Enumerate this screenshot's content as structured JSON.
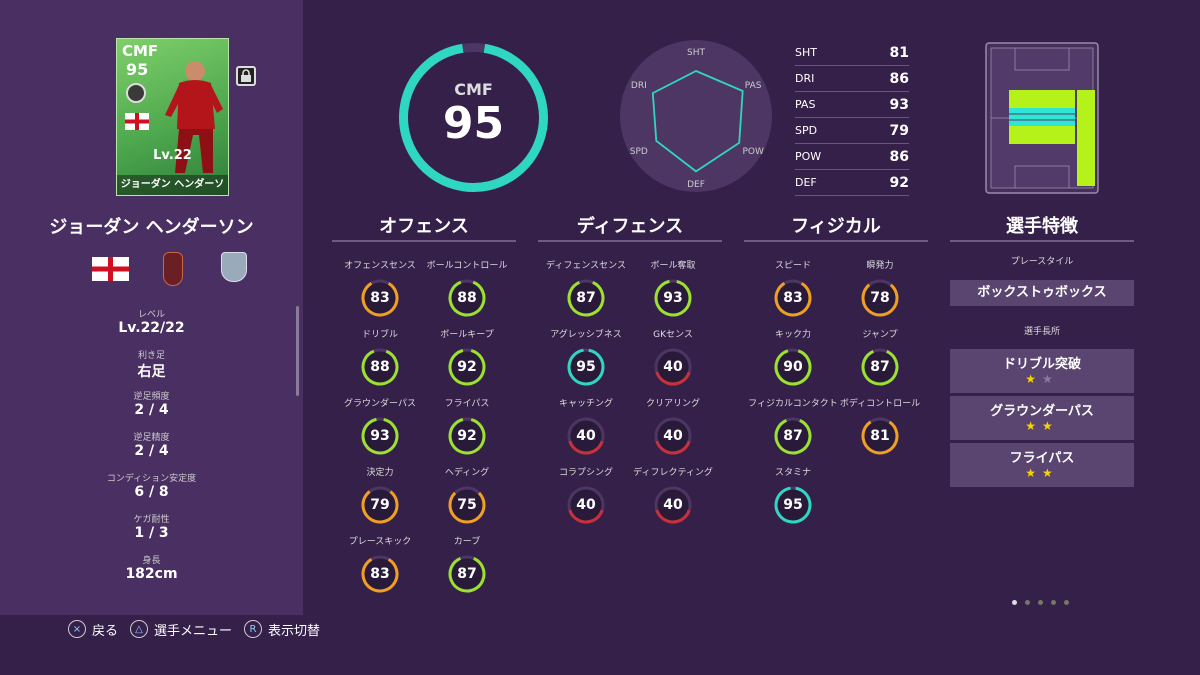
{
  "card": {
    "position": "CMF",
    "rating": "95",
    "level": "Lv.22",
    "name": "ジョーダン ヘンダーソン"
  },
  "player_name": "ジョーダン ヘンダーソン",
  "profile": [
    {
      "label": "レベル",
      "value": "Lv.22/22"
    },
    {
      "label": "利き足",
      "value": "右足"
    },
    {
      "label": "逆足頻度",
      "value": "2 / 4"
    },
    {
      "label": "逆足精度",
      "value": "2 / 4"
    },
    {
      "label": "コンディション安定度",
      "value": "6 / 8"
    },
    {
      "label": "ケガ耐性",
      "value": "1 / 3"
    },
    {
      "label": "身長",
      "value": "182cm"
    }
  ],
  "controls": [
    {
      "icon": "×",
      "label": "戻る"
    },
    {
      "icon": "△",
      "label": "選手メニュー"
    },
    {
      "icon": "R",
      "label": "表示切替"
    }
  ],
  "overall": {
    "position": "CMF",
    "rating": "95",
    "fraction": 0.95
  },
  "radar": {
    "labels": [
      "SHT",
      "PAS",
      "POW",
      "DEF",
      "SPD",
      "DRI"
    ],
    "values": [
      81,
      93,
      86,
      92,
      79,
      86
    ]
  },
  "stats": [
    {
      "k": "SHT",
      "v": "81"
    },
    {
      "k": "DRI",
      "v": "86"
    },
    {
      "k": "PAS",
      "v": "93"
    },
    {
      "k": "SPD",
      "v": "79"
    },
    {
      "k": "POW",
      "v": "86"
    },
    {
      "k": "DEF",
      "v": "92"
    }
  ],
  "sections": {
    "offense": {
      "title": "オフェンス",
      "attrs": [
        {
          "label": "オフェンスセンス",
          "value": 83
        },
        {
          "label": "ボールコントロール",
          "value": 88
        },
        {
          "label": "ドリブル",
          "value": 88
        },
        {
          "label": "ボールキープ",
          "value": 92
        },
        {
          "label": "グラウンダーパス",
          "value": 93
        },
        {
          "label": "フライパス",
          "value": 92
        },
        {
          "label": "決定力",
          "value": 79
        },
        {
          "label": "ヘディング",
          "value": 75
        },
        {
          "label": "プレースキック",
          "value": 83
        },
        {
          "label": "カーブ",
          "value": 87
        }
      ]
    },
    "defense": {
      "title": "ディフェンス",
      "attrs": [
        {
          "label": "ディフェンスセンス",
          "value": 87
        },
        {
          "label": "ボール奪取",
          "value": 93
        },
        {
          "label": "アグレッシブネス",
          "value": 95
        },
        {
          "label": "GKセンス",
          "value": 40
        },
        {
          "label": "キャッチング",
          "value": 40
        },
        {
          "label": "クリアリング",
          "value": 40
        },
        {
          "label": "コラプシング",
          "value": 40
        },
        {
          "label": "ディフレクティング",
          "value": 40
        }
      ]
    },
    "physical": {
      "title": "フィジカル",
      "attrs": [
        {
          "label": "スピード",
          "value": 83
        },
        {
          "label": "瞬発力",
          "value": 78
        },
        {
          "label": "キック力",
          "value": 90
        },
        {
          "label": "ジャンプ",
          "value": 87
        },
        {
          "label": "フィジカルコンタクト",
          "value": 87
        },
        {
          "label": "ボディコントロール",
          "value": 81
        },
        {
          "label": "スタミナ",
          "value": 95
        }
      ]
    }
  },
  "traits": {
    "title": "選手特徴",
    "playstyle_label": "プレースタイル",
    "playstyle": "ボックストゥボックス",
    "skills_label": "選手長所",
    "skills": [
      {
        "name": "ドリブル突破",
        "stars": 1,
        "max": 2
      },
      {
        "name": "グラウンダーパス",
        "stars": 2,
        "max": 2
      },
      {
        "name": "フライパス",
        "stars": 2,
        "max": 2
      }
    ]
  },
  "colors": {
    "high": "#2fd6c0",
    "good": "#9be22f",
    "mid": "#f0a020",
    "low": "#c8313a"
  },
  "pager": {
    "count": 5,
    "active": 0
  }
}
